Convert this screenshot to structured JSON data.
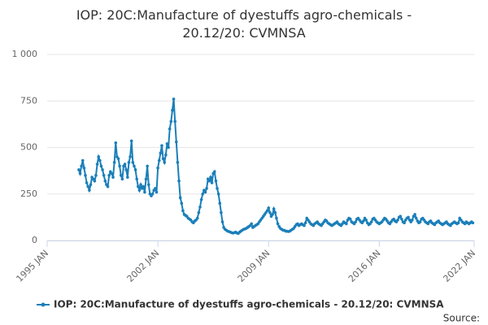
{
  "chart_data": {
    "type": "line",
    "title": "IOP: 20C:Manufacture of dyestuffs agro-chemicals - 20.12/20: CVMNSA",
    "source_label": "Source:",
    "xlim": [
      "1995-01",
      "2022-01"
    ],
    "xticks": [
      {
        "value": "1995-01",
        "label": "1995 JAN"
      },
      {
        "value": "2002-01",
        "label": "2002 JAN"
      },
      {
        "value": "2009-01",
        "label": "2009 JAN"
      },
      {
        "value": "2016-01",
        "label": "2016 JAN"
      },
      {
        "value": "2022-01",
        "label": "2022 JAN"
      }
    ],
    "ylim": [
      0,
      1000
    ],
    "yticks": [
      0,
      250,
      500,
      750,
      {
        "value": 1000,
        "label": "1 000"
      }
    ],
    "grid": true,
    "x": [
      "1997-01",
      "1997-02",
      "1997-03",
      "1997-04",
      "1997-05",
      "1997-06",
      "1997-07",
      "1997-08",
      "1997-09",
      "1997-10",
      "1997-11",
      "1997-12",
      "1998-01",
      "1998-02",
      "1998-03",
      "1998-04",
      "1998-05",
      "1998-06",
      "1998-07",
      "1998-08",
      "1998-09",
      "1998-10",
      "1998-11",
      "1998-12",
      "1999-01",
      "1999-02",
      "1999-03",
      "1999-04",
      "1999-05",
      "1999-06",
      "1999-07",
      "1999-08",
      "1999-09",
      "1999-10",
      "1999-11",
      "1999-12",
      "2000-01",
      "2000-02",
      "2000-03",
      "2000-04",
      "2000-05",
      "2000-06",
      "2000-07",
      "2000-08",
      "2000-09",
      "2000-10",
      "2000-11",
      "2000-12",
      "2001-01",
      "2001-02",
      "2001-03",
      "2001-04",
      "2001-05",
      "2001-06",
      "2001-07",
      "2001-08",
      "2001-09",
      "2001-10",
      "2001-11",
      "2001-12",
      "2002-01",
      "2002-02",
      "2002-03",
      "2002-04",
      "2002-05",
      "2002-06",
      "2002-07",
      "2002-08",
      "2002-09",
      "2002-10",
      "2002-11",
      "2002-12",
      "2003-01",
      "2003-02",
      "2003-03",
      "2003-04",
      "2003-05",
      "2003-06",
      "2003-07",
      "2003-08",
      "2003-09",
      "2003-10",
      "2003-11",
      "2003-12",
      "2004-01",
      "2004-02",
      "2004-03",
      "2004-04",
      "2004-05",
      "2004-06",
      "2004-07",
      "2004-08",
      "2004-09",
      "2004-10",
      "2004-11",
      "2004-12",
      "2005-01",
      "2005-02",
      "2005-03",
      "2005-04",
      "2005-05",
      "2005-06",
      "2005-07",
      "2005-08",
      "2005-09",
      "2005-10",
      "2005-11",
      "2005-12",
      "2006-01",
      "2006-02",
      "2006-03",
      "2006-04",
      "2006-05",
      "2006-06",
      "2006-07",
      "2006-08",
      "2006-09",
      "2006-10",
      "2006-11",
      "2006-12",
      "2007-01",
      "2007-02",
      "2007-03",
      "2007-04",
      "2007-05",
      "2007-06",
      "2007-07",
      "2007-08",
      "2007-09",
      "2007-10",
      "2007-11",
      "2007-12",
      "2008-01",
      "2008-02",
      "2008-03",
      "2008-04",
      "2008-05",
      "2008-06",
      "2008-07",
      "2008-08",
      "2008-09",
      "2008-10",
      "2008-11",
      "2008-12",
      "2009-01",
      "2009-02",
      "2009-03",
      "2009-04",
      "2009-05",
      "2009-06",
      "2009-07",
      "2009-08",
      "2009-09",
      "2009-10",
      "2009-11",
      "2009-12",
      "2010-01",
      "2010-02",
      "2010-03",
      "2010-04",
      "2010-05",
      "2010-06",
      "2010-07",
      "2010-08",
      "2010-09",
      "2010-10",
      "2010-11",
      "2010-12",
      "2011-01",
      "2011-02",
      "2011-03",
      "2011-04",
      "2011-05",
      "2011-06",
      "2011-07",
      "2011-08",
      "2011-09",
      "2011-10",
      "2011-11",
      "2011-12",
      "2012-01",
      "2012-02",
      "2012-03",
      "2012-04",
      "2012-05",
      "2012-06",
      "2012-07",
      "2012-08",
      "2012-09",
      "2012-10",
      "2012-11",
      "2012-12",
      "2013-01",
      "2013-02",
      "2013-03",
      "2013-04",
      "2013-05",
      "2013-06",
      "2013-07",
      "2013-08",
      "2013-09",
      "2013-10",
      "2013-11",
      "2013-12",
      "2014-01",
      "2014-02",
      "2014-03",
      "2014-04",
      "2014-05",
      "2014-06",
      "2014-07",
      "2014-08",
      "2014-09",
      "2014-10",
      "2014-11",
      "2014-12",
      "2015-01",
      "2015-02",
      "2015-03",
      "2015-04",
      "2015-05",
      "2015-06",
      "2015-07",
      "2015-08",
      "2015-09",
      "2015-10",
      "2015-11",
      "2015-12",
      "2016-01",
      "2016-02",
      "2016-03",
      "2016-04",
      "2016-05",
      "2016-06",
      "2016-07",
      "2016-08",
      "2016-09",
      "2016-10",
      "2016-11",
      "2016-12",
      "2017-01",
      "2017-02",
      "2017-03",
      "2017-04",
      "2017-05",
      "2017-06",
      "2017-07",
      "2017-08",
      "2017-09",
      "2017-10",
      "2017-11",
      "2017-12",
      "2018-01",
      "2018-02",
      "2018-03",
      "2018-04",
      "2018-05",
      "2018-06",
      "2018-07",
      "2018-08",
      "2018-09",
      "2018-10",
      "2018-11",
      "2018-12",
      "2019-01",
      "2019-02",
      "2019-03",
      "2019-04",
      "2019-05",
      "2019-06",
      "2019-07",
      "2019-08",
      "2019-09",
      "2019-10",
      "2019-11",
      "2019-12",
      "2020-01",
      "2020-02",
      "2020-03",
      "2020-04",
      "2020-05",
      "2020-06",
      "2020-07",
      "2020-08",
      "2020-09",
      "2020-10",
      "2020-11",
      "2020-12",
      "2021-01",
      "2021-02",
      "2021-03",
      "2021-04",
      "2021-05",
      "2021-06",
      "2021-07",
      "2021-08",
      "2021-09",
      "2021-10",
      "2021-11",
      "2021-12"
    ],
    "series": [
      {
        "name": "IOP: 20C:Manufacture of dyestuffs agro-chemicals - 20.12/20: CVMNSA",
        "color": "#1b7fb9",
        "values": [
          380,
          360,
          400,
          430,
          390,
          350,
          310,
          290,
          270,
          300,
          340,
          330,
          320,
          350,
          410,
          450,
          430,
          400,
          380,
          350,
          320,
          300,
          290,
          350,
          370,
          360,
          340,
          420,
          525,
          450,
          440,
          400,
          350,
          330,
          400,
          410,
          380,
          340,
          420,
          450,
          535,
          420,
          400,
          380,
          330,
          290,
          270,
          300,
          280,
          290,
          260,
          330,
          400,
          300,
          250,
          240,
          250,
          270,
          280,
          260,
          390,
          430,
          470,
          510,
          440,
          420,
          460,
          520,
          500,
          600,
          640,
          700,
          760,
          640,
          530,
          420,
          320,
          230,
          200,
          160,
          140,
          135,
          130,
          120,
          115,
          110,
          100,
          95,
          105,
          110,
          120,
          150,
          180,
          220,
          250,
          270,
          260,
          280,
          330,
          320,
          340,
          310,
          360,
          370,
          320,
          280,
          250,
          200,
          150,
          100,
          70,
          60,
          55,
          50,
          48,
          45,
          42,
          40,
          42,
          45,
          40,
          38,
          45,
          50,
          55,
          60,
          62,
          65,
          70,
          75,
          80,
          90,
          70,
          75,
          80,
          85,
          90,
          100,
          110,
          120,
          130,
          140,
          150,
          160,
          175,
          150,
          130,
          140,
          170,
          150,
          120,
          90,
          75,
          65,
          60,
          55,
          55,
          50,
          50,
          48,
          50,
          55,
          60,
          65,
          75,
          85,
          90,
          80,
          85,
          90,
          85,
          80,
          95,
          120,
          110,
          100,
          90,
          85,
          80,
          90,
          95,
          100,
          90,
          85,
          80,
          90,
          100,
          110,
          105,
          95,
          90,
          85,
          80,
          85,
          90,
          95,
          100,
          90,
          85,
          80,
          90,
          100,
          95,
          90,
          110,
          120,
          115,
          100,
          95,
          90,
          100,
          115,
          120,
          110,
          100,
          95,
          105,
          120,
          110,
          95,
          85,
          90,
          100,
          115,
          120,
          110,
          100,
          95,
          90,
          95,
          100,
          110,
          120,
          115,
          105,
          95,
          90,
          100,
          110,
          115,
          105,
          100,
          110,
          125,
          130,
          115,
          100,
          95,
          110,
          120,
          125,
          110,
          100,
          110,
          130,
          140,
          120,
          105,
          95,
          100,
          115,
          120,
          110,
          100,
          95,
          90,
          100,
          105,
          95,
          90,
          85,
          95,
          100,
          105,
          95,
          90,
          85,
          90,
          95,
          100,
          90,
          85,
          80,
          90,
          95,
          100,
          95,
          90,
          95,
          120,
          110,
          100,
          95,
          90,
          100,
          95,
          90,
          95,
          100,
          95
        ]
      }
    ]
  }
}
